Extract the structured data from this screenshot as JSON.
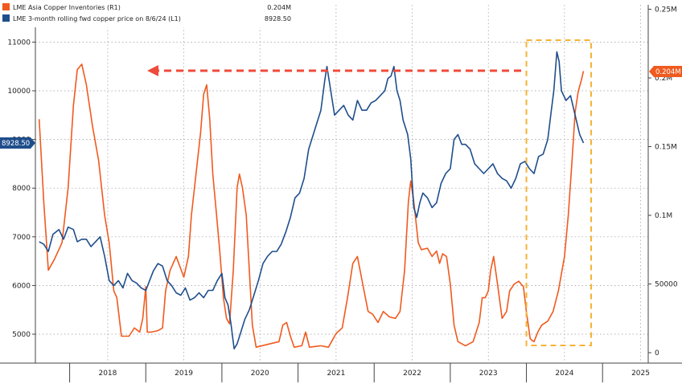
{
  "chart_data": {
    "type": "line",
    "title": "",
    "xlabel": "",
    "ylabel": "",
    "x_ticks": [
      "2018",
      "2019",
      "2020",
      "2021",
      "2022",
      "2023",
      "2024",
      "2025"
    ],
    "y_left": {
      "ticks": [
        5000,
        6000,
        7000,
        8000,
        9000,
        10000,
        11000
      ],
      "range": [
        4650,
        11450
      ]
    },
    "y_right": {
      "ticks": [
        "0",
        "50000",
        "0.1M",
        "0.15M",
        "0.2M",
        "0.25M"
      ],
      "range": [
        -3000,
        0.255
      ]
    },
    "grid": true,
    "legend_position": "top-left",
    "series": [
      {
        "name": "LME Asia Copper Inventories (R1)",
        "axis": "right",
        "color": "#f05a1e",
        "last_value": "0.204M",
        "points": [
          [
            2017.6,
            0.17
          ],
          [
            2017.66,
            0.11
          ],
          [
            2017.72,
            0.06
          ],
          [
            2017.8,
            0.068
          ],
          [
            2017.9,
            0.08
          ],
          [
            2017.98,
            0.12
          ],
          [
            2018.05,
            0.18
          ],
          [
            2018.1,
            0.206
          ],
          [
            2018.16,
            0.21
          ],
          [
            2018.22,
            0.195
          ],
          [
            2018.3,
            0.165
          ],
          [
            2018.38,
            0.14
          ],
          [
            2018.46,
            0.1
          ],
          [
            2018.52,
            0.08
          ],
          [
            2018.58,
            0.045
          ],
          [
            2018.62,
            0.04
          ],
          [
            2018.68,
            0.012
          ],
          [
            2018.78,
            0.012
          ],
          [
            2018.85,
            0.018
          ],
          [
            2018.92,
            0.015
          ],
          [
            2018.96,
            0.025
          ],
          [
            2019.0,
            0.048
          ],
          [
            2019.02,
            0.015
          ],
          [
            2019.07,
            0.015
          ],
          [
            2019.16,
            0.016
          ],
          [
            2019.22,
            0.018
          ],
          [
            2019.26,
            0.045
          ],
          [
            2019.32,
            0.06
          ],
          [
            2019.4,
            0.07
          ],
          [
            2019.5,
            0.055
          ],
          [
            2019.56,
            0.07
          ],
          [
            2019.6,
            0.1
          ],
          [
            2019.66,
            0.13
          ],
          [
            2019.72,
            0.16
          ],
          [
            2019.76,
            0.188
          ],
          [
            2019.8,
            0.195
          ],
          [
            2019.84,
            0.17
          ],
          [
            2019.88,
            0.13
          ],
          [
            2019.93,
            0.1
          ],
          [
            2019.97,
            0.075
          ],
          [
            2020.02,
            0.04
          ],
          [
            2020.06,
            0.025
          ],
          [
            2020.1,
            0.021
          ],
          [
            2020.15,
            0.06
          ],
          [
            2020.2,
            0.12
          ],
          [
            2020.23,
            0.13
          ],
          [
            2020.27,
            0.12
          ],
          [
            2020.32,
            0.1
          ],
          [
            2020.36,
            0.06
          ],
          [
            2020.4,
            0.02
          ],
          [
            2020.45,
            0.004
          ],
          [
            2020.6,
            0.006
          ],
          [
            2020.75,
            0.008
          ],
          [
            2020.8,
            0.02
          ],
          [
            2020.85,
            0.022
          ],
          [
            2020.9,
            0.012
          ],
          [
            2020.95,
            0.004
          ],
          [
            2021.05,
            0.005
          ],
          [
            2021.1,
            0.015
          ],
          [
            2021.15,
            0.004
          ],
          [
            2021.3,
            0.005
          ],
          [
            2021.4,
            0.004
          ],
          [
            2021.5,
            0.014
          ],
          [
            2021.58,
            0.018
          ],
          [
            2021.65,
            0.04
          ],
          [
            2021.72,
            0.065
          ],
          [
            2021.78,
            0.07
          ],
          [
            2021.85,
            0.05
          ],
          [
            2021.92,
            0.03
          ],
          [
            2021.98,
            0.028
          ],
          [
            2022.05,
            0.022
          ],
          [
            2022.12,
            0.03
          ],
          [
            2022.2,
            0.026
          ],
          [
            2022.28,
            0.025
          ],
          [
            2022.34,
            0.03
          ],
          [
            2022.4,
            0.06
          ],
          [
            2022.45,
            0.11
          ],
          [
            2022.48,
            0.125
          ],
          [
            2022.52,
            0.11
          ],
          [
            2022.58,
            0.08
          ],
          [
            2022.62,
            0.075
          ],
          [
            2022.7,
            0.076
          ],
          [
            2022.76,
            0.07
          ],
          [
            2022.82,
            0.074
          ],
          [
            2022.86,
            0.065
          ],
          [
            2022.9,
            0.072
          ],
          [
            2022.95,
            0.07
          ],
          [
            2023.0,
            0.05
          ],
          [
            2023.05,
            0.02
          ],
          [
            2023.1,
            0.008
          ],
          [
            2023.2,
            0.005
          ],
          [
            2023.3,
            0.008
          ],
          [
            2023.38,
            0.022
          ],
          [
            2023.42,
            0.04
          ],
          [
            2023.46,
            0.04
          ],
          [
            2023.5,
            0.045
          ],
          [
            2023.53,
            0.06
          ],
          [
            2023.57,
            0.07
          ],
          [
            2023.62,
            0.05
          ],
          [
            2023.68,
            0.025
          ],
          [
            2023.74,
            0.03
          ],
          [
            2023.78,
            0.045
          ],
          [
            2023.84,
            0.05
          ],
          [
            2023.9,
            0.052
          ],
          [
            2023.96,
            0.048
          ],
          [
            2024.0,
            0.03
          ],
          [
            2024.05,
            0.01
          ],
          [
            2024.1,
            0.008
          ],
          [
            2024.15,
            0.015
          ],
          [
            2024.2,
            0.02
          ],
          [
            2024.28,
            0.023
          ],
          [
            2024.35,
            0.03
          ],
          [
            2024.42,
            0.045
          ],
          [
            2024.5,
            0.07
          ],
          [
            2024.55,
            0.1
          ],
          [
            2024.6,
            0.14
          ],
          [
            2024.64,
            0.175
          ],
          [
            2024.68,
            0.19
          ],
          [
            2024.72,
            0.198
          ],
          [
            2024.75,
            0.205
          ]
        ]
      },
      {
        "name": "LME 3-month rolling fwd copper price on 8/6/24 (L1)",
        "axis": "left",
        "color": "#1f4e8c",
        "last_value": "8928.50",
        "points": [
          [
            2017.6,
            6900
          ],
          [
            2017.66,
            6850
          ],
          [
            2017.72,
            6700
          ],
          [
            2017.78,
            7050
          ],
          [
            2017.86,
            7150
          ],
          [
            2017.92,
            6950
          ],
          [
            2017.98,
            7200
          ],
          [
            2018.05,
            7150
          ],
          [
            2018.1,
            6900
          ],
          [
            2018.16,
            6950
          ],
          [
            2018.22,
            6950
          ],
          [
            2018.28,
            6800
          ],
          [
            2018.34,
            6900
          ],
          [
            2018.4,
            7000
          ],
          [
            2018.46,
            6600
          ],
          [
            2018.52,
            6100
          ],
          [
            2018.58,
            6000
          ],
          [
            2018.64,
            6100
          ],
          [
            2018.7,
            5950
          ],
          [
            2018.76,
            6250
          ],
          [
            2018.82,
            6100
          ],
          [
            2018.88,
            6050
          ],
          [
            2018.94,
            5950
          ],
          [
            2019.0,
            5900
          ],
          [
            2019.05,
            6100
          ],
          [
            2019.1,
            6300
          ],
          [
            2019.16,
            6450
          ],
          [
            2019.22,
            6400
          ],
          [
            2019.28,
            6100
          ],
          [
            2019.34,
            6000
          ],
          [
            2019.4,
            5850
          ],
          [
            2019.46,
            5800
          ],
          [
            2019.52,
            5950
          ],
          [
            2019.58,
            5700
          ],
          [
            2019.64,
            5750
          ],
          [
            2019.7,
            5850
          ],
          [
            2019.76,
            5750
          ],
          [
            2019.82,
            5900
          ],
          [
            2019.88,
            5900
          ],
          [
            2019.94,
            6100
          ],
          [
            2020.0,
            6250
          ],
          [
            2020.04,
            5750
          ],
          [
            2020.08,
            5600
          ],
          [
            2020.12,
            5200
          ],
          [
            2020.16,
            4700
          ],
          [
            2020.2,
            4800
          ],
          [
            2020.25,
            5050
          ],
          [
            2020.3,
            5300
          ],
          [
            2020.36,
            5500
          ],
          [
            2020.42,
            5800
          ],
          [
            2020.48,
            6100
          ],
          [
            2020.54,
            6450
          ],
          [
            2020.6,
            6600
          ],
          [
            2020.66,
            6700
          ],
          [
            2020.72,
            6700
          ],
          [
            2020.78,
            6850
          ],
          [
            2020.84,
            7100
          ],
          [
            2020.9,
            7400
          ],
          [
            2020.96,
            7800
          ],
          [
            2021.02,
            7900
          ],
          [
            2021.08,
            8200
          ],
          [
            2021.14,
            8800
          ],
          [
            2021.18,
            9000
          ],
          [
            2021.24,
            9300
          ],
          [
            2021.3,
            9600
          ],
          [
            2021.35,
            10200
          ],
          [
            2021.38,
            10500
          ],
          [
            2021.42,
            10100
          ],
          [
            2021.48,
            9500
          ],
          [
            2021.54,
            9600
          ],
          [
            2021.6,
            9700
          ],
          [
            2021.66,
            9500
          ],
          [
            2021.72,
            9400
          ],
          [
            2021.78,
            9800
          ],
          [
            2021.84,
            9600
          ],
          [
            2021.9,
            9600
          ],
          [
            2021.96,
            9750
          ],
          [
            2022.02,
            9800
          ],
          [
            2022.08,
            9900
          ],
          [
            2022.14,
            10000
          ],
          [
            2022.18,
            10250
          ],
          [
            2022.22,
            10300
          ],
          [
            2022.26,
            10500
          ],
          [
            2022.3,
            10000
          ],
          [
            2022.34,
            9800
          ],
          [
            2022.38,
            9400
          ],
          [
            2022.44,
            9100
          ],
          [
            2022.48,
            8600
          ],
          [
            2022.52,
            7600
          ],
          [
            2022.56,
            7400
          ],
          [
            2022.6,
            7700
          ],
          [
            2022.64,
            7900
          ],
          [
            2022.7,
            7800
          ],
          [
            2022.76,
            7600
          ],
          [
            2022.82,
            7700
          ],
          [
            2022.88,
            8100
          ],
          [
            2022.94,
            8300
          ],
          [
            2023.0,
            8400
          ],
          [
            2023.05,
            9000
          ],
          [
            2023.1,
            9100
          ],
          [
            2023.15,
            8900
          ],
          [
            2023.2,
            8900
          ],
          [
            2023.26,
            8800
          ],
          [
            2023.32,
            8500
          ],
          [
            2023.38,
            8400
          ],
          [
            2023.44,
            8300
          ],
          [
            2023.5,
            8400
          ],
          [
            2023.56,
            8500
          ],
          [
            2023.62,
            8300
          ],
          [
            2023.68,
            8200
          ],
          [
            2023.74,
            8150
          ],
          [
            2023.8,
            8000
          ],
          [
            2023.86,
            8200
          ],
          [
            2023.92,
            8500
          ],
          [
            2023.98,
            8550
          ],
          [
            2024.04,
            8400
          ],
          [
            2024.1,
            8300
          ],
          [
            2024.16,
            8650
          ],
          [
            2024.22,
            8700
          ],
          [
            2024.28,
            9000
          ],
          [
            2024.32,
            9500
          ],
          [
            2024.36,
            10000
          ],
          [
            2024.4,
            10800
          ],
          [
            2024.43,
            10600
          ],
          [
            2024.46,
            10000
          ],
          [
            2024.52,
            9800
          ],
          [
            2024.58,
            9900
          ],
          [
            2024.64,
            9500
          ],
          [
            2024.7,
            9100
          ],
          [
            2024.75,
            8928.5
          ]
        ]
      }
    ],
    "annotations": [
      {
        "type": "dashed-arrow",
        "color": "#f04a3a",
        "direction": "left"
      },
      {
        "type": "dashed-box",
        "color": "#f5b335",
        "x_range": [
          2024.0,
          2024.85
        ]
      }
    ]
  }
}
